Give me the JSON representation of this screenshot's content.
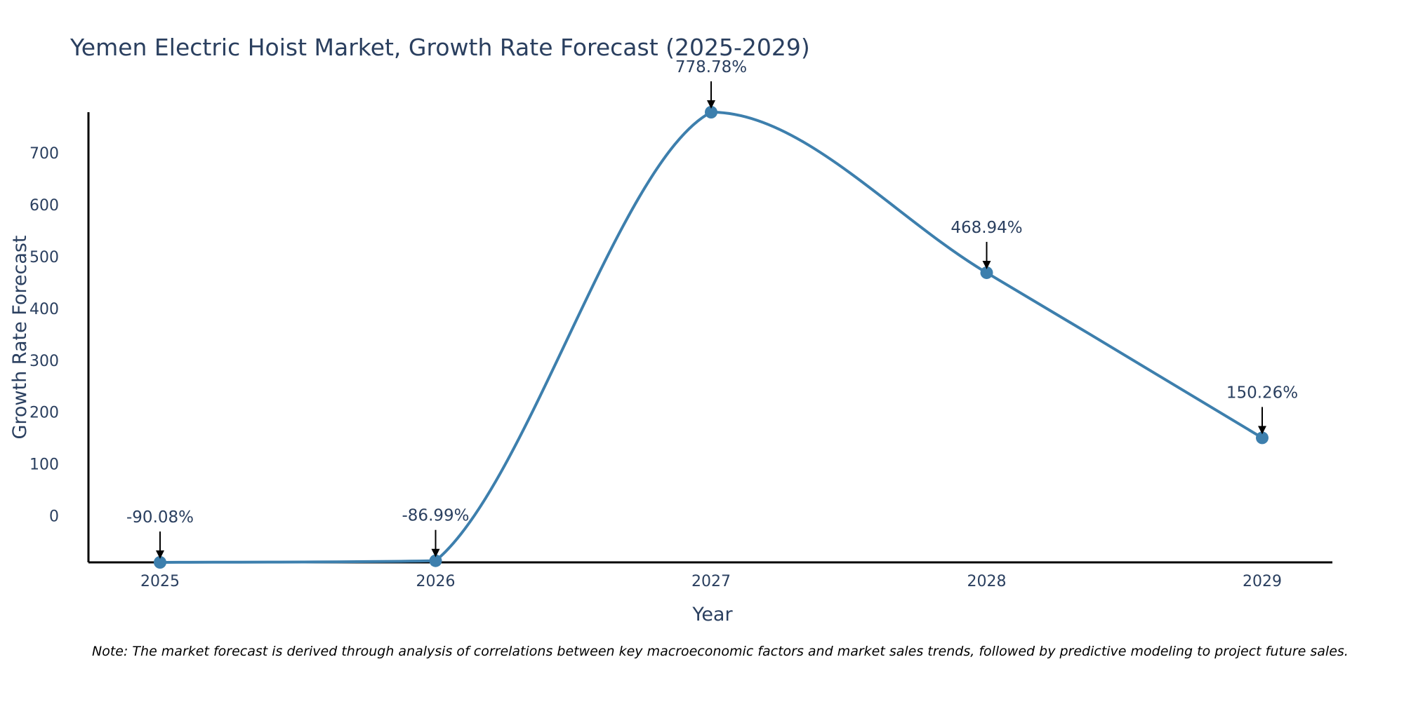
{
  "chart_data": {
    "type": "line",
    "title": "Yemen Electric Hoist Market, Growth Rate Forecast (2025-2029)",
    "xlabel": "Year",
    "ylabel": "Growth Rate Forecast",
    "x": [
      "2025",
      "2026",
      "2027",
      "2028",
      "2029"
    ],
    "values": [
      -90.08,
      -86.99,
      778.78,
      468.94,
      150.26
    ],
    "labels": [
      "-90.08%",
      "-86.99%",
      "778.78%",
      "468.94%",
      "150.26%"
    ],
    "y_ticks": [
      0,
      100,
      200,
      300,
      400,
      500,
      600,
      700
    ],
    "ylim": [
      -90.08,
      778.78
    ],
    "line_color": "#3d7fad",
    "marker_color": "#3d7fad",
    "annotation_arrow_color": "#000000",
    "note": "Note: The market forecast is derived through analysis of correlations between key macroeconomic factors and market sales trends, followed by predictive modeling to project future sales."
  }
}
